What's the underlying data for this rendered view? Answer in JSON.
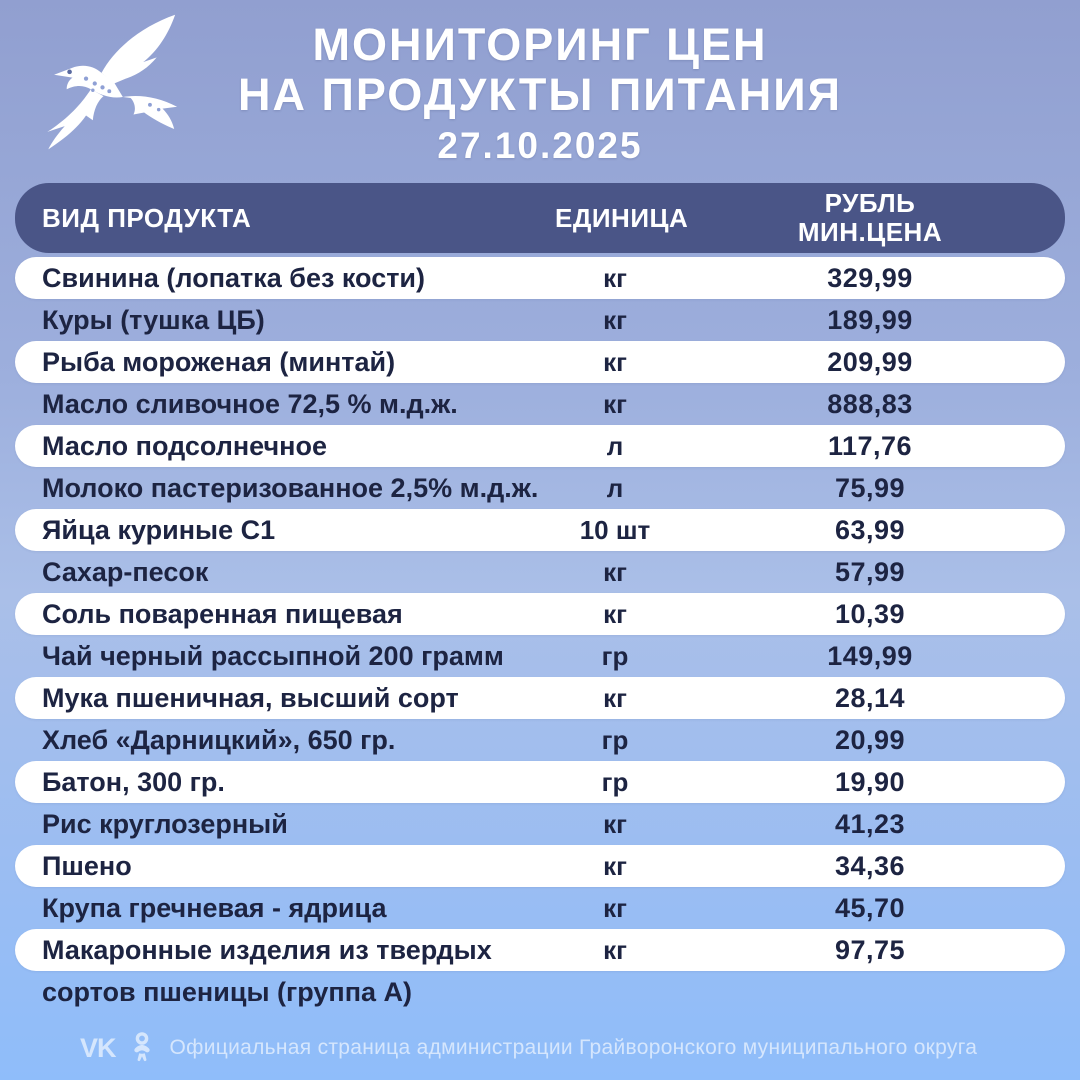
{
  "page": {
    "title_line1": "МОНИТОРИНГ ЦЕН",
    "title_line2": "НА ПРОДУКТЫ ПИТАНИЯ",
    "date": "27.10.2025"
  },
  "table": {
    "headers": {
      "product": "ВИД ПРОДУКТА",
      "unit": "ЕДИНИЦА",
      "price_line1": "РУБЛЬ",
      "price_line2": "МИН.ЦЕНА"
    },
    "rows": [
      {
        "product": "Свинина (лопатка без кости)",
        "unit": "кг",
        "price": "329,99"
      },
      {
        "product": "Куры (тушка ЦБ)",
        "unit": "кг",
        "price": "189,99"
      },
      {
        "product": "Рыба мороженая (минтай)",
        "unit": "кг",
        "price": "209,99"
      },
      {
        "product": "Масло сливочное 72,5 % м.д.ж.",
        "unit": "кг",
        "price": "888,83"
      },
      {
        "product": "Масло подсолнечное",
        "unit": "л",
        "price": "117,76"
      },
      {
        "product": "Молоко пастеризованное 2,5% м.д.ж.",
        "unit": "л",
        "price": "75,99"
      },
      {
        "product": "Яйца куриные С1",
        "unit": "10 шт",
        "price": "63,99"
      },
      {
        "product": "Сахар-песок",
        "unit": "кг",
        "price": "57,99"
      },
      {
        "product": "Соль поваренная пищевая",
        "unit": "кг",
        "price": "10,39"
      },
      {
        "product": "Чай черный рассыпной 200 грамм",
        "unit": "гр",
        "price": "149,99"
      },
      {
        "product": "Мука пшеничная, высший сорт",
        "unit": "кг",
        "price": "28,14"
      },
      {
        "product": "Хлеб «Дарницкий», 650 гр.",
        "unit": "гр",
        "price": "20,99"
      },
      {
        "product": "Батон, 300 гр.",
        "unit": "гр",
        "price": "19,90"
      },
      {
        "product": "Рис круглозерный",
        "unit": "кг",
        "price": "41,23"
      },
      {
        "product": "Пшено",
        "unit": "кг",
        "price": "34,36"
      },
      {
        "product": "Крупа гречневая - ядрица",
        "unit": "кг",
        "price": "45,70"
      },
      {
        "product": "Макаронные изделия из твердых",
        "product_line2": "сортов пшеницы (группа А)",
        "unit": "кг",
        "price": "97,75"
      }
    ]
  },
  "footer": {
    "vk_label": "VK",
    "text": "Официальная страница администрации Грайворонского муниципального округа"
  },
  "colors": {
    "bg_top": "#919fd0",
    "bg_middle": "#aabfe8",
    "bg_bottom": "#8fbdfa",
    "header_bar": "#4a5587",
    "text_dark": "#1d2442",
    "row_pill": "#ffffff",
    "title_text": "#ffffff"
  },
  "icons": [
    "bird-logo",
    "vk-icon",
    "ok-icon"
  ]
}
